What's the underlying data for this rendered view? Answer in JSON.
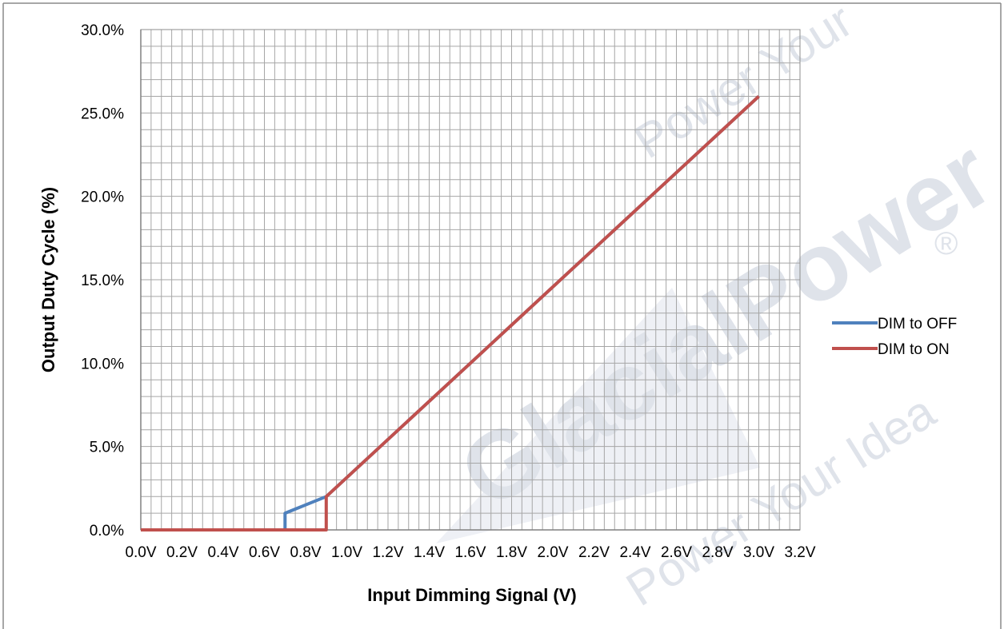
{
  "chart_data": {
    "type": "line",
    "title": "",
    "xlabel": "Input Dimming Signal (V)",
    "ylabel": "Output Duty Cycle (%)",
    "xlim": [
      0.0,
      3.2
    ],
    "ylim": [
      0.0,
      0.3
    ],
    "x_ticks": [
      "0.0V",
      "0.2V",
      "0.4V",
      "0.6V",
      "0.8V",
      "1.0V",
      "1.2V",
      "1.4V",
      "1.6V",
      "1.8V",
      "2.0V",
      "2.2V",
      "2.4V",
      "2.6V",
      "2.8V",
      "3.0V",
      "3.2V"
    ],
    "y_ticks": [
      "0.0%",
      "5.0%",
      "10.0%",
      "15.0%",
      "20.0%",
      "25.0%",
      "30.0%"
    ],
    "grid": true,
    "legend_position": "right",
    "series": [
      {
        "name": "DIM to OFF",
        "color": "#4f81bd",
        "points": [
          [
            0.0,
            0.0
          ],
          [
            0.7,
            0.0
          ],
          [
            0.7,
            0.01
          ],
          [
            0.9,
            0.02
          ],
          [
            3.0,
            0.26
          ]
        ]
      },
      {
        "name": "DIM to ON",
        "color": "#c0504d",
        "points": [
          [
            0.0,
            0.0
          ],
          [
            0.9,
            0.0
          ],
          [
            0.9,
            0.02
          ],
          [
            3.0,
            0.26
          ]
        ]
      }
    ]
  },
  "watermark": {
    "brand": "GlacialPower",
    "slogan_top": "Power Your",
    "slogan_bottom": "Power Your Idea",
    "registered": "®"
  }
}
